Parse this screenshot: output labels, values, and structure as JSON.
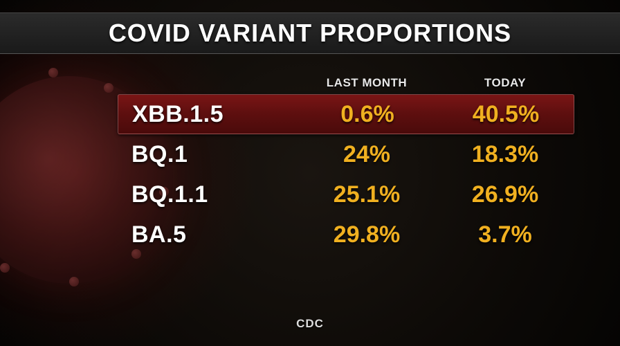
{
  "title": "COVID VARIANT PROPORTIONS",
  "columns": {
    "variant": "",
    "last_month": "LAST MONTH",
    "today": "TODAY"
  },
  "rows": [
    {
      "variant": "XBB.1.5",
      "last_month": "0.6%",
      "today": "40.5%",
      "highlight": true
    },
    {
      "variant": "BQ.1",
      "last_month": "24%",
      "today": "18.3%",
      "highlight": false
    },
    {
      "variant": "BQ.1.1",
      "last_month": "25.1%",
      "today": "26.9%",
      "highlight": false
    },
    {
      "variant": "BA.5",
      "last_month": "29.8%",
      "today": "3.7%",
      "highlight": false
    }
  ],
  "source": "CDC",
  "style": {
    "bg_color": "#0d0a07",
    "title_bar_bg": "#222222",
    "title_color": "#ffffff",
    "title_fontsize": 36,
    "header_color": "#e8e8e8",
    "header_fontsize": 17,
    "variant_color": "#ffffff",
    "value_color": "#f0b020",
    "cell_fontsize": 34,
    "highlight_bg": "#5e0f0f",
    "source_color": "#dddddd",
    "virus_tint": "#7a3030"
  }
}
